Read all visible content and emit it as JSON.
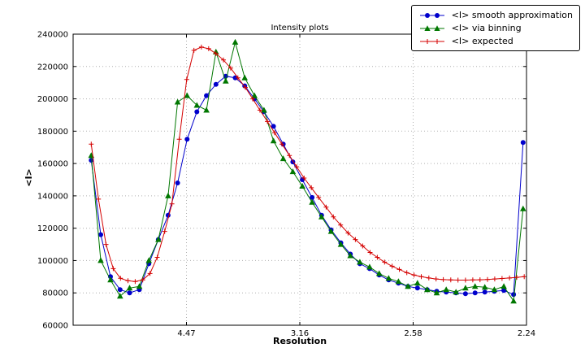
{
  "chart_data": {
    "type": "line",
    "title": "Intensity plots",
    "xlabel": "Resolution",
    "ylabel": "<I>",
    "x_scale_hint": "linear in 1/resolution^2",
    "xlim": [
      0.0,
      0.2
    ],
    "ylim": [
      60000,
      240000
    ],
    "grid": true,
    "legend_position": "upper right",
    "xtick_positions": [
      0.05,
      0.1,
      0.15,
      0.2
    ],
    "xtick_labels": [
      "4.47",
      "3.16",
      "2.58",
      "2.24"
    ],
    "ytick_values": [
      60000,
      80000,
      100000,
      120000,
      140000,
      160000,
      180000,
      200000,
      220000,
      240000
    ],
    "series": [
      {
        "name": "<I> smooth approximation",
        "color": "#0000cc",
        "marker": "circle",
        "x": [
          0.008,
          0.0122,
          0.0165,
          0.0207,
          0.0249,
          0.0292,
          0.0334,
          0.0376,
          0.0419,
          0.0461,
          0.0503,
          0.0546,
          0.0588,
          0.063,
          0.0673,
          0.0715,
          0.0757,
          0.08,
          0.0842,
          0.0884,
          0.0927,
          0.0969,
          0.1011,
          0.1054,
          0.1096,
          0.1138,
          0.1181,
          0.1223,
          0.1265,
          0.1308,
          0.135,
          0.1392,
          0.1435,
          0.1477,
          0.1519,
          0.1562,
          0.1604,
          0.1646,
          0.1689,
          0.1731,
          0.1773,
          0.1816,
          0.1858,
          0.19,
          0.1943,
          0.1985
        ],
        "values": [
          162000,
          116000,
          90000,
          82000,
          80000,
          82000,
          98000,
          113000,
          128000,
          148000,
          175000,
          192000,
          202000,
          209000,
          214000,
          213000,
          208000,
          200000,
          192000,
          183000,
          172000,
          161000,
          150000,
          139000,
          128000,
          119000,
          111000,
          104000,
          98000,
          95000,
          91000,
          88000,
          86000,
          84000,
          83000,
          82000,
          81000,
          80500,
          80000,
          79500,
          80000,
          80500,
          81000,
          81500,
          79000,
          173000
        ]
      },
      {
        "name": "<I> via binning",
        "color": "#007700",
        "marker": "triangle",
        "x": [
          0.008,
          0.0122,
          0.0165,
          0.0207,
          0.0249,
          0.0292,
          0.0334,
          0.0376,
          0.0419,
          0.0461,
          0.0503,
          0.0546,
          0.0588,
          0.063,
          0.0673,
          0.0715,
          0.0757,
          0.08,
          0.0842,
          0.0884,
          0.0927,
          0.0969,
          0.1011,
          0.1054,
          0.1096,
          0.1138,
          0.1181,
          0.1223,
          0.1265,
          0.1308,
          0.135,
          0.1392,
          0.1435,
          0.1477,
          0.1519,
          0.1562,
          0.1604,
          0.1646,
          0.1689,
          0.1731,
          0.1773,
          0.1816,
          0.1858,
          0.19,
          0.1943,
          0.1985
        ],
        "values": [
          165000,
          100000,
          88000,
          78000,
          83000,
          84000,
          100000,
          113000,
          140000,
          198000,
          202000,
          196000,
          193000,
          229000,
          211000,
          235000,
          213000,
          202000,
          193000,
          174000,
          163000,
          155000,
          146000,
          136000,
          127000,
          118000,
          110000,
          103000,
          99000,
          96000,
          92000,
          89000,
          87000,
          84000,
          86000,
          82000,
          80000,
          82000,
          80500,
          83000,
          84000,
          83500,
          82000,
          84000,
          75000,
          132000
        ]
      },
      {
        "name": "<I> expected",
        "color": "#d40000",
        "marker": "plus",
        "x": [
          0.008,
          0.0112,
          0.0145,
          0.0177,
          0.0209,
          0.0242,
          0.0274,
          0.0307,
          0.0339,
          0.0371,
          0.0404,
          0.0436,
          0.0468,
          0.0501,
          0.0533,
          0.0566,
          0.0598,
          0.063,
          0.0663,
          0.0695,
          0.0727,
          0.076,
          0.0792,
          0.0824,
          0.0857,
          0.0889,
          0.0921,
          0.0954,
          0.0986,
          0.1019,
          0.1051,
          0.1083,
          0.1116,
          0.1148,
          0.118,
          0.1213,
          0.1245,
          0.1277,
          0.131,
          0.1342,
          0.1374,
          0.1407,
          0.1439,
          0.1472,
          0.1504,
          0.1536,
          0.1569,
          0.1601,
          0.1633,
          0.1666,
          0.1698,
          0.1731,
          0.1763,
          0.1795,
          0.1828,
          0.186,
          0.1892,
          0.1925,
          0.1957,
          0.199
        ],
        "values": [
          172000,
          138000,
          110000,
          95000,
          89000,
          87500,
          87000,
          88000,
          92000,
          102000,
          118000,
          135000,
          175000,
          212000,
          230000,
          232000,
          231000,
          228000,
          224000,
          219000,
          213000,
          207000,
          200000,
          193000,
          186000,
          179000,
          172000,
          165000,
          158000,
          151000,
          145000,
          139000,
          133000,
          127000,
          122000,
          117000,
          113000,
          109000,
          105000,
          102000,
          99000,
          96500,
          94500,
          92500,
          91000,
          90000,
          89200,
          88600,
          88200,
          88000,
          87900,
          87900,
          88000,
          88100,
          88300,
          88600,
          88900,
          89200,
          89600,
          90000
        ]
      }
    ]
  }
}
